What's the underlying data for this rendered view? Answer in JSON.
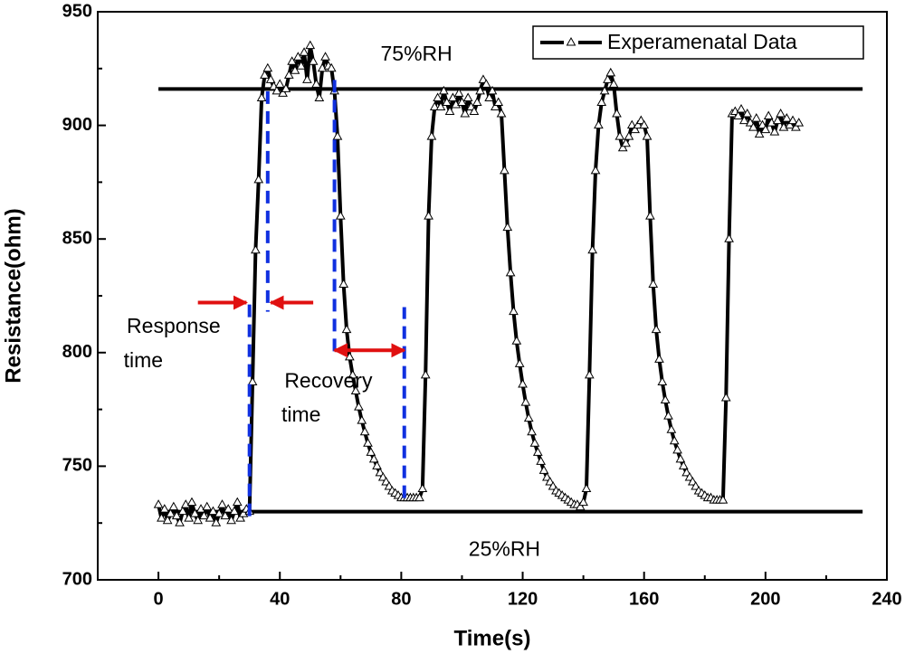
{
  "chart_data": {
    "type": "line",
    "xlabel": "Time(s)",
    "ylabel": "Resistance(ohm)",
    "xlim": [
      -20,
      240
    ],
    "ylim": [
      700,
      950
    ],
    "xticks": [
      0,
      40,
      80,
      120,
      160,
      200,
      240
    ],
    "yticks": [
      700,
      750,
      800,
      850,
      900,
      950
    ],
    "legend": "upper right",
    "x": [
      0,
      1,
      2,
      3,
      4,
      5,
      6,
      7,
      8,
      9,
      10,
      11,
      12,
      13,
      14,
      15,
      16,
      17,
      18,
      19,
      20,
      21,
      22,
      23,
      24,
      25,
      26,
      27,
      28,
      29,
      30,
      31,
      32,
      33,
      34,
      35,
      36,
      37,
      38,
      39,
      40,
      41,
      42,
      43,
      44,
      45,
      46,
      47,
      48,
      49,
      50,
      51,
      52,
      53,
      54,
      55,
      56,
      57,
      58,
      59,
      60,
      61,
      62,
      63,
      64,
      65,
      66,
      67,
      68,
      69,
      70,
      71,
      72,
      73,
      74,
      75,
      76,
      77,
      78,
      79,
      80,
      81,
      82,
      83,
      84,
      85,
      86,
      87,
      88,
      89,
      90,
      91,
      92,
      93,
      94,
      95,
      96,
      97,
      98,
      99,
      100,
      101,
      102,
      103,
      104,
      105,
      106,
      107,
      108,
      109,
      110,
      111,
      112,
      113,
      114,
      115,
      116,
      117,
      118,
      119,
      120,
      121,
      122,
      123,
      124,
      125,
      126,
      127,
      128,
      129,
      130,
      131,
      132,
      133,
      134,
      135,
      136,
      137,
      138,
      139,
      140,
      141,
      142,
      143,
      144,
      145,
      146,
      147,
      148,
      149,
      150,
      151,
      152,
      153,
      154,
      155,
      156,
      157,
      158,
      159,
      160,
      161,
      162,
      163,
      164,
      165,
      166,
      167,
      168,
      169,
      170,
      171,
      172,
      173,
      174,
      175,
      176,
      177,
      178,
      179,
      180,
      181,
      182,
      183,
      184,
      185,
      186,
      187,
      188,
      189,
      190,
      191,
      192,
      193,
      194,
      195,
      196,
      197,
      198,
      199,
      200,
      201,
      202,
      203,
      204,
      205,
      206,
      207,
      208,
      209,
      210,
      211
    ],
    "series": [
      {
        "name": "Experamenatal Data",
        "color": "#000000",
        "values": [
          733,
          727,
          731,
          726,
          729,
          732,
          728,
          725,
          730,
          733,
          727,
          734,
          729,
          726,
          731,
          728,
          732,
          727,
          730,
          725,
          729,
          733,
          728,
          731,
          726,
          730,
          734,
          727,
          729,
          731,
          730,
          787,
          845,
          876,
          912,
          922,
          925,
          920,
          917,
          915,
          918,
          914,
          916,
          922,
          928,
          924,
          930,
          926,
          932,
          920,
          935,
          928,
          918,
          912,
          925,
          930,
          926,
          925,
          915,
          895,
          860,
          830,
          810,
          798,
          790,
          783,
          776,
          770,
          765,
          760,
          756,
          753,
          750,
          747,
          745,
          743,
          741,
          739,
          738,
          737,
          736,
          736,
          736,
          736,
          736,
          736,
          736,
          740,
          790,
          860,
          895,
          908,
          912,
          908,
          915,
          910,
          906,
          912,
          909,
          914,
          910,
          905,
          912,
          908,
          906,
          910,
          915,
          920,
          918,
          912,
          915,
          908,
          910,
          905,
          880,
          855,
          835,
          818,
          805,
          795,
          786,
          778,
          771,
          765,
          760,
          756,
          752,
          748,
          745,
          743,
          741,
          739,
          738,
          737,
          736,
          735,
          734,
          733,
          733,
          732,
          734,
          740,
          790,
          845,
          880,
          900,
          910,
          915,
          920,
          923,
          918,
          905,
          895,
          890,
          892,
          895,
          900,
          898,
          900,
          902,
          900,
          895,
          860,
          830,
          810,
          797,
          787,
          779,
          772,
          766,
          761,
          757,
          753,
          750,
          747,
          745,
          743,
          741,
          739,
          738,
          737,
          736,
          736,
          735,
          735,
          735,
          735,
          780,
          850,
          905,
          906,
          904,
          907,
          902,
          905,
          901,
          899,
          903,
          896,
          900,
          898,
          904,
          901,
          897,
          902,
          905,
          899,
          903,
          900,
          902,
          899,
          901
        ]
      }
    ],
    "reference_lines": [
      {
        "value": 916,
        "x": [
          0,
          232
        ]
      },
      {
        "value": 730,
        "x": [
          0,
          232
        ]
      }
    ],
    "dashed_lines": [
      {
        "x": 30,
        "y": [
          728,
          822
        ]
      },
      {
        "x": 36,
        "y": [
          915,
          818
        ]
      },
      {
        "x": 58,
        "y": [
          920,
          800
        ]
      },
      {
        "x": 81,
        "y": [
          736,
          820
        ]
      }
    ],
    "arrows": [
      {
        "x": [
          13,
          29
        ],
        "y": 822,
        "double": false
      },
      {
        "x": [
          51,
          37
        ],
        "y": 822,
        "double": false
      },
      {
        "x": [
          58,
          81
        ],
        "y": 801,
        "double": true
      }
    ],
    "annotations": [
      {
        "text": "75%RH",
        "x": 85,
        "y": 931
      },
      {
        "text": "25%RH",
        "x": 114,
        "y": 713
      },
      {
        "text": "Response",
        "x": 5,
        "y": 811
      },
      {
        "text": "time",
        "x": -5,
        "y": 796
      },
      {
        "text": "Recovery",
        "x": 56,
        "y": 787
      },
      {
        "text": "time",
        "x": 47,
        "y": 772
      }
    ]
  }
}
